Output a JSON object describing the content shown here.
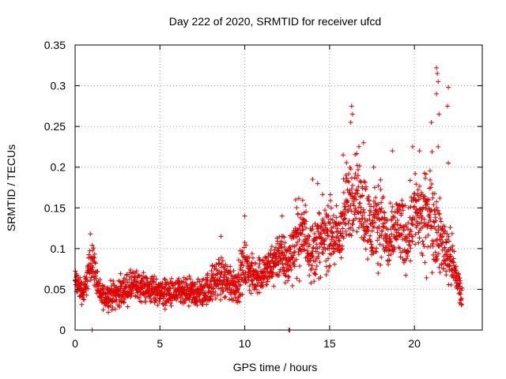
{
  "chart_data": {
    "type": "scatter",
    "title": "Day 222 of 2020, SRMTID for receiver ufcd",
    "xlabel": "GPS time / hours",
    "ylabel": "SRMTID / TECUs",
    "xlim": [
      0,
      24
    ],
    "ylim": [
      0,
      0.35
    ],
    "xticks": [
      0,
      5,
      10,
      15,
      20
    ],
    "xtick_labels": [
      "0",
      "5",
      "10",
      "15",
      "20"
    ],
    "yticks": [
      0,
      0.05,
      0.1,
      0.15,
      0.2,
      0.25,
      0.3,
      0.35
    ],
    "ytick_labels": [
      "0",
      "0.05",
      "0.1",
      "0.15",
      "0.2",
      "0.25",
      "0.3",
      "0.35"
    ],
    "grid": true,
    "marker": "+",
    "series": [
      {
        "name": "SRMTID",
        "color": "#e00000",
        "trend": [
          {
            "x": 0.0,
            "y": 0.06,
            "spread": 0.012
          },
          {
            "x": 0.5,
            "y": 0.045,
            "spread": 0.01
          },
          {
            "x": 1.0,
            "y": 0.09,
            "spread": 0.018
          },
          {
            "x": 1.5,
            "y": 0.04,
            "spread": 0.01
          },
          {
            "x": 2.5,
            "y": 0.045,
            "spread": 0.012
          },
          {
            "x": 3.5,
            "y": 0.055,
            "spread": 0.013
          },
          {
            "x": 4.5,
            "y": 0.05,
            "spread": 0.012
          },
          {
            "x": 5.5,
            "y": 0.045,
            "spread": 0.012
          },
          {
            "x": 6.5,
            "y": 0.045,
            "spread": 0.012
          },
          {
            "x": 7.5,
            "y": 0.045,
            "spread": 0.012
          },
          {
            "x": 8.5,
            "y": 0.065,
            "spread": 0.018
          },
          {
            "x": 9.5,
            "y": 0.055,
            "spread": 0.016
          },
          {
            "x": 10.0,
            "y": 0.08,
            "spread": 0.02
          },
          {
            "x": 10.5,
            "y": 0.065,
            "spread": 0.015
          },
          {
            "x": 11.5,
            "y": 0.075,
            "spread": 0.018
          },
          {
            "x": 12.0,
            "y": 0.095,
            "spread": 0.022
          },
          {
            "x": 12.5,
            "y": 0.08,
            "spread": 0.02
          },
          {
            "x": 13.0,
            "y": 0.11,
            "spread": 0.028
          },
          {
            "x": 13.5,
            "y": 0.12,
            "spread": 0.03
          },
          {
            "x": 14.0,
            "y": 0.095,
            "spread": 0.025
          },
          {
            "x": 14.5,
            "y": 0.11,
            "spread": 0.028
          },
          {
            "x": 15.0,
            "y": 0.12,
            "spread": 0.03
          },
          {
            "x": 15.5,
            "y": 0.11,
            "spread": 0.028
          },
          {
            "x": 16.0,
            "y": 0.15,
            "spread": 0.035
          },
          {
            "x": 16.5,
            "y": 0.175,
            "spread": 0.035
          },
          {
            "x": 17.0,
            "y": 0.15,
            "spread": 0.035
          },
          {
            "x": 17.5,
            "y": 0.12,
            "spread": 0.03
          },
          {
            "x": 18.0,
            "y": 0.14,
            "spread": 0.035
          },
          {
            "x": 18.5,
            "y": 0.1,
            "spread": 0.025
          },
          {
            "x": 19.0,
            "y": 0.13,
            "spread": 0.03
          },
          {
            "x": 19.5,
            "y": 0.11,
            "spread": 0.028
          },
          {
            "x": 20.0,
            "y": 0.15,
            "spread": 0.035
          },
          {
            "x": 20.5,
            "y": 0.13,
            "spread": 0.035
          },
          {
            "x": 21.0,
            "y": 0.15,
            "spread": 0.045
          },
          {
            "x": 21.5,
            "y": 0.11,
            "spread": 0.03
          },
          {
            "x": 22.0,
            "y": 0.095,
            "spread": 0.025
          },
          {
            "x": 22.5,
            "y": 0.065,
            "spread": 0.018
          },
          {
            "x": 22.8,
            "y": 0.04,
            "spread": 0.01
          }
        ],
        "outliers": [
          {
            "x": 1.0,
            "y": 0.0
          },
          {
            "x": 12.6,
            "y": 0.0
          },
          {
            "x": 12.65,
            "y": 0.0
          },
          {
            "x": 16.3,
            "y": 0.275
          },
          {
            "x": 16.35,
            "y": 0.265
          },
          {
            "x": 16.25,
            "y": 0.255
          },
          {
            "x": 21.3,
            "y": 0.322
          },
          {
            "x": 21.35,
            "y": 0.315
          },
          {
            "x": 21.4,
            "y": 0.305
          },
          {
            "x": 21.3,
            "y": 0.29
          },
          {
            "x": 22.0,
            "y": 0.298
          },
          {
            "x": 21.95,
            "y": 0.275
          },
          {
            "x": 21.45,
            "y": 0.265
          },
          {
            "x": 21.0,
            "y": 0.255
          },
          {
            "x": 17.0,
            "y": 0.23
          },
          {
            "x": 19.9,
            "y": 0.225
          },
          {
            "x": 18.7,
            "y": 0.22
          },
          {
            "x": 15.8,
            "y": 0.215
          },
          {
            "x": 20.3,
            "y": 0.22
          },
          {
            "x": 21.4,
            "y": 0.225
          },
          {
            "x": 22.0,
            "y": 0.205
          },
          {
            "x": 14.0,
            "y": 0.185
          },
          {
            "x": 14.3,
            "y": 0.18
          },
          {
            "x": 17.6,
            "y": 0.2
          },
          {
            "x": 10.0,
            "y": 0.14
          },
          {
            "x": 8.6,
            "y": 0.115
          },
          {
            "x": 0.9,
            "y": 0.118
          },
          {
            "x": 13.0,
            "y": 0.16
          },
          {
            "x": 12.2,
            "y": 0.14
          }
        ]
      }
    ]
  }
}
